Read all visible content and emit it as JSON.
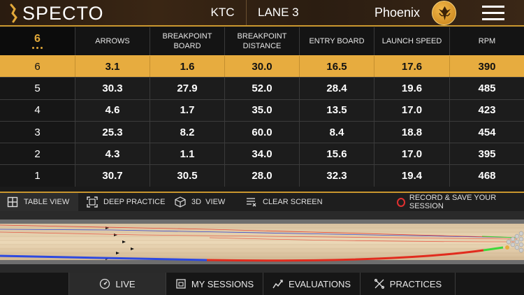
{
  "header": {
    "brand": "SPECTO",
    "center": "KTC",
    "lane": "LANE 3",
    "team": "Phoenix",
    "menu_icon": "hamburger-menu-icon",
    "accent_color": "#e7ac3f"
  },
  "table": {
    "current_shot": "6",
    "columns": [
      "ARROWS",
      "BREAKPOINT BOARD",
      "BREAKPOINT DISTANCE",
      "ENTRY BOARD",
      "LAUNCH SPEED",
      "RPM"
    ],
    "rows": [
      {
        "shot": "6",
        "values": [
          "3.1",
          "1.6",
          "30.0",
          "16.5",
          "17.6",
          "390"
        ]
      },
      {
        "shot": "5",
        "values": [
          "30.3",
          "27.9",
          "52.0",
          "28.4",
          "19.6",
          "485"
        ]
      },
      {
        "shot": "4",
        "values": [
          "4.6",
          "1.7",
          "35.0",
          "13.5",
          "17.0",
          "423"
        ]
      },
      {
        "shot": "3",
        "values": [
          "25.3",
          "8.2",
          "60.0",
          "8.4",
          "18.8",
          "454"
        ]
      },
      {
        "shot": "2",
        "values": [
          "4.3",
          "1.1",
          "34.0",
          "15.6",
          "17.0",
          "395"
        ]
      },
      {
        "shot": "1",
        "values": [
          "30.7",
          "30.5",
          "28.0",
          "32.3",
          "19.4",
          "468"
        ]
      }
    ],
    "selected_row": 0
  },
  "toolbar": {
    "table_view": "TABLE VIEW",
    "deep_practice": "DEEP PRACTICE",
    "view_3d": "3D  VIEW",
    "clear_screen": "CLEAR SCREEN",
    "record": "RECORD & SAVE YOUR SESSION"
  },
  "nav": {
    "live": "LIVE",
    "sessions": "MY SESSIONS",
    "evaluations": "EVALUATIONS",
    "practices": "PRACTICES"
  }
}
